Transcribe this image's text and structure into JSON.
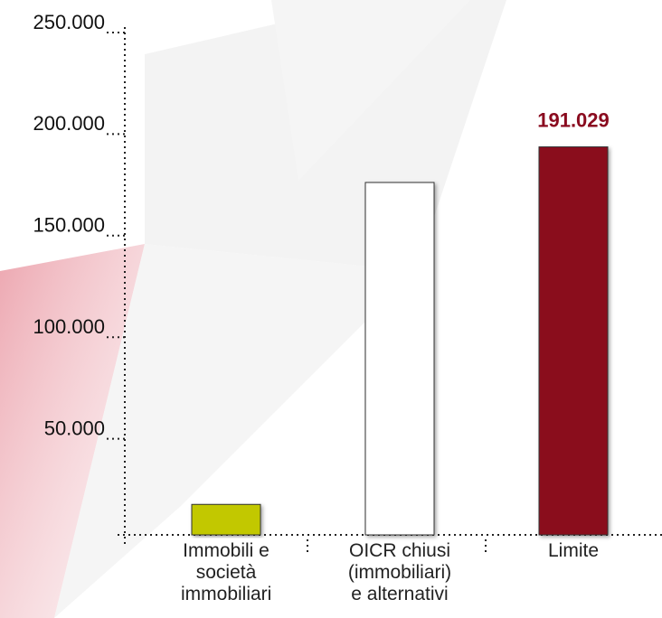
{
  "chart_data": {
    "type": "bar",
    "categories": [
      "Immobili e società immobiliari",
      "OICR chiusi (immobiliari) e alternativi",
      "Limite"
    ],
    "values": [
      15000,
      173500,
      191029
    ],
    "value_labels": [
      null,
      null,
      "191.029"
    ],
    "colors": [
      "#c2c800",
      "#ffffff",
      "#8a0b1f"
    ],
    "value_label_color": "#8a0b1f",
    "ylim": [
      0,
      250000
    ],
    "yticks": [
      {
        "value": 50000,
        "label": "50.000"
      },
      {
        "value": 100000,
        "label": "100.000"
      },
      {
        "value": 150000,
        "label": "150.000"
      },
      {
        "value": 200000,
        "label": "200.000"
      },
      {
        "value": 250000,
        "label": "250.000"
      }
    ],
    "grid": false
  }
}
